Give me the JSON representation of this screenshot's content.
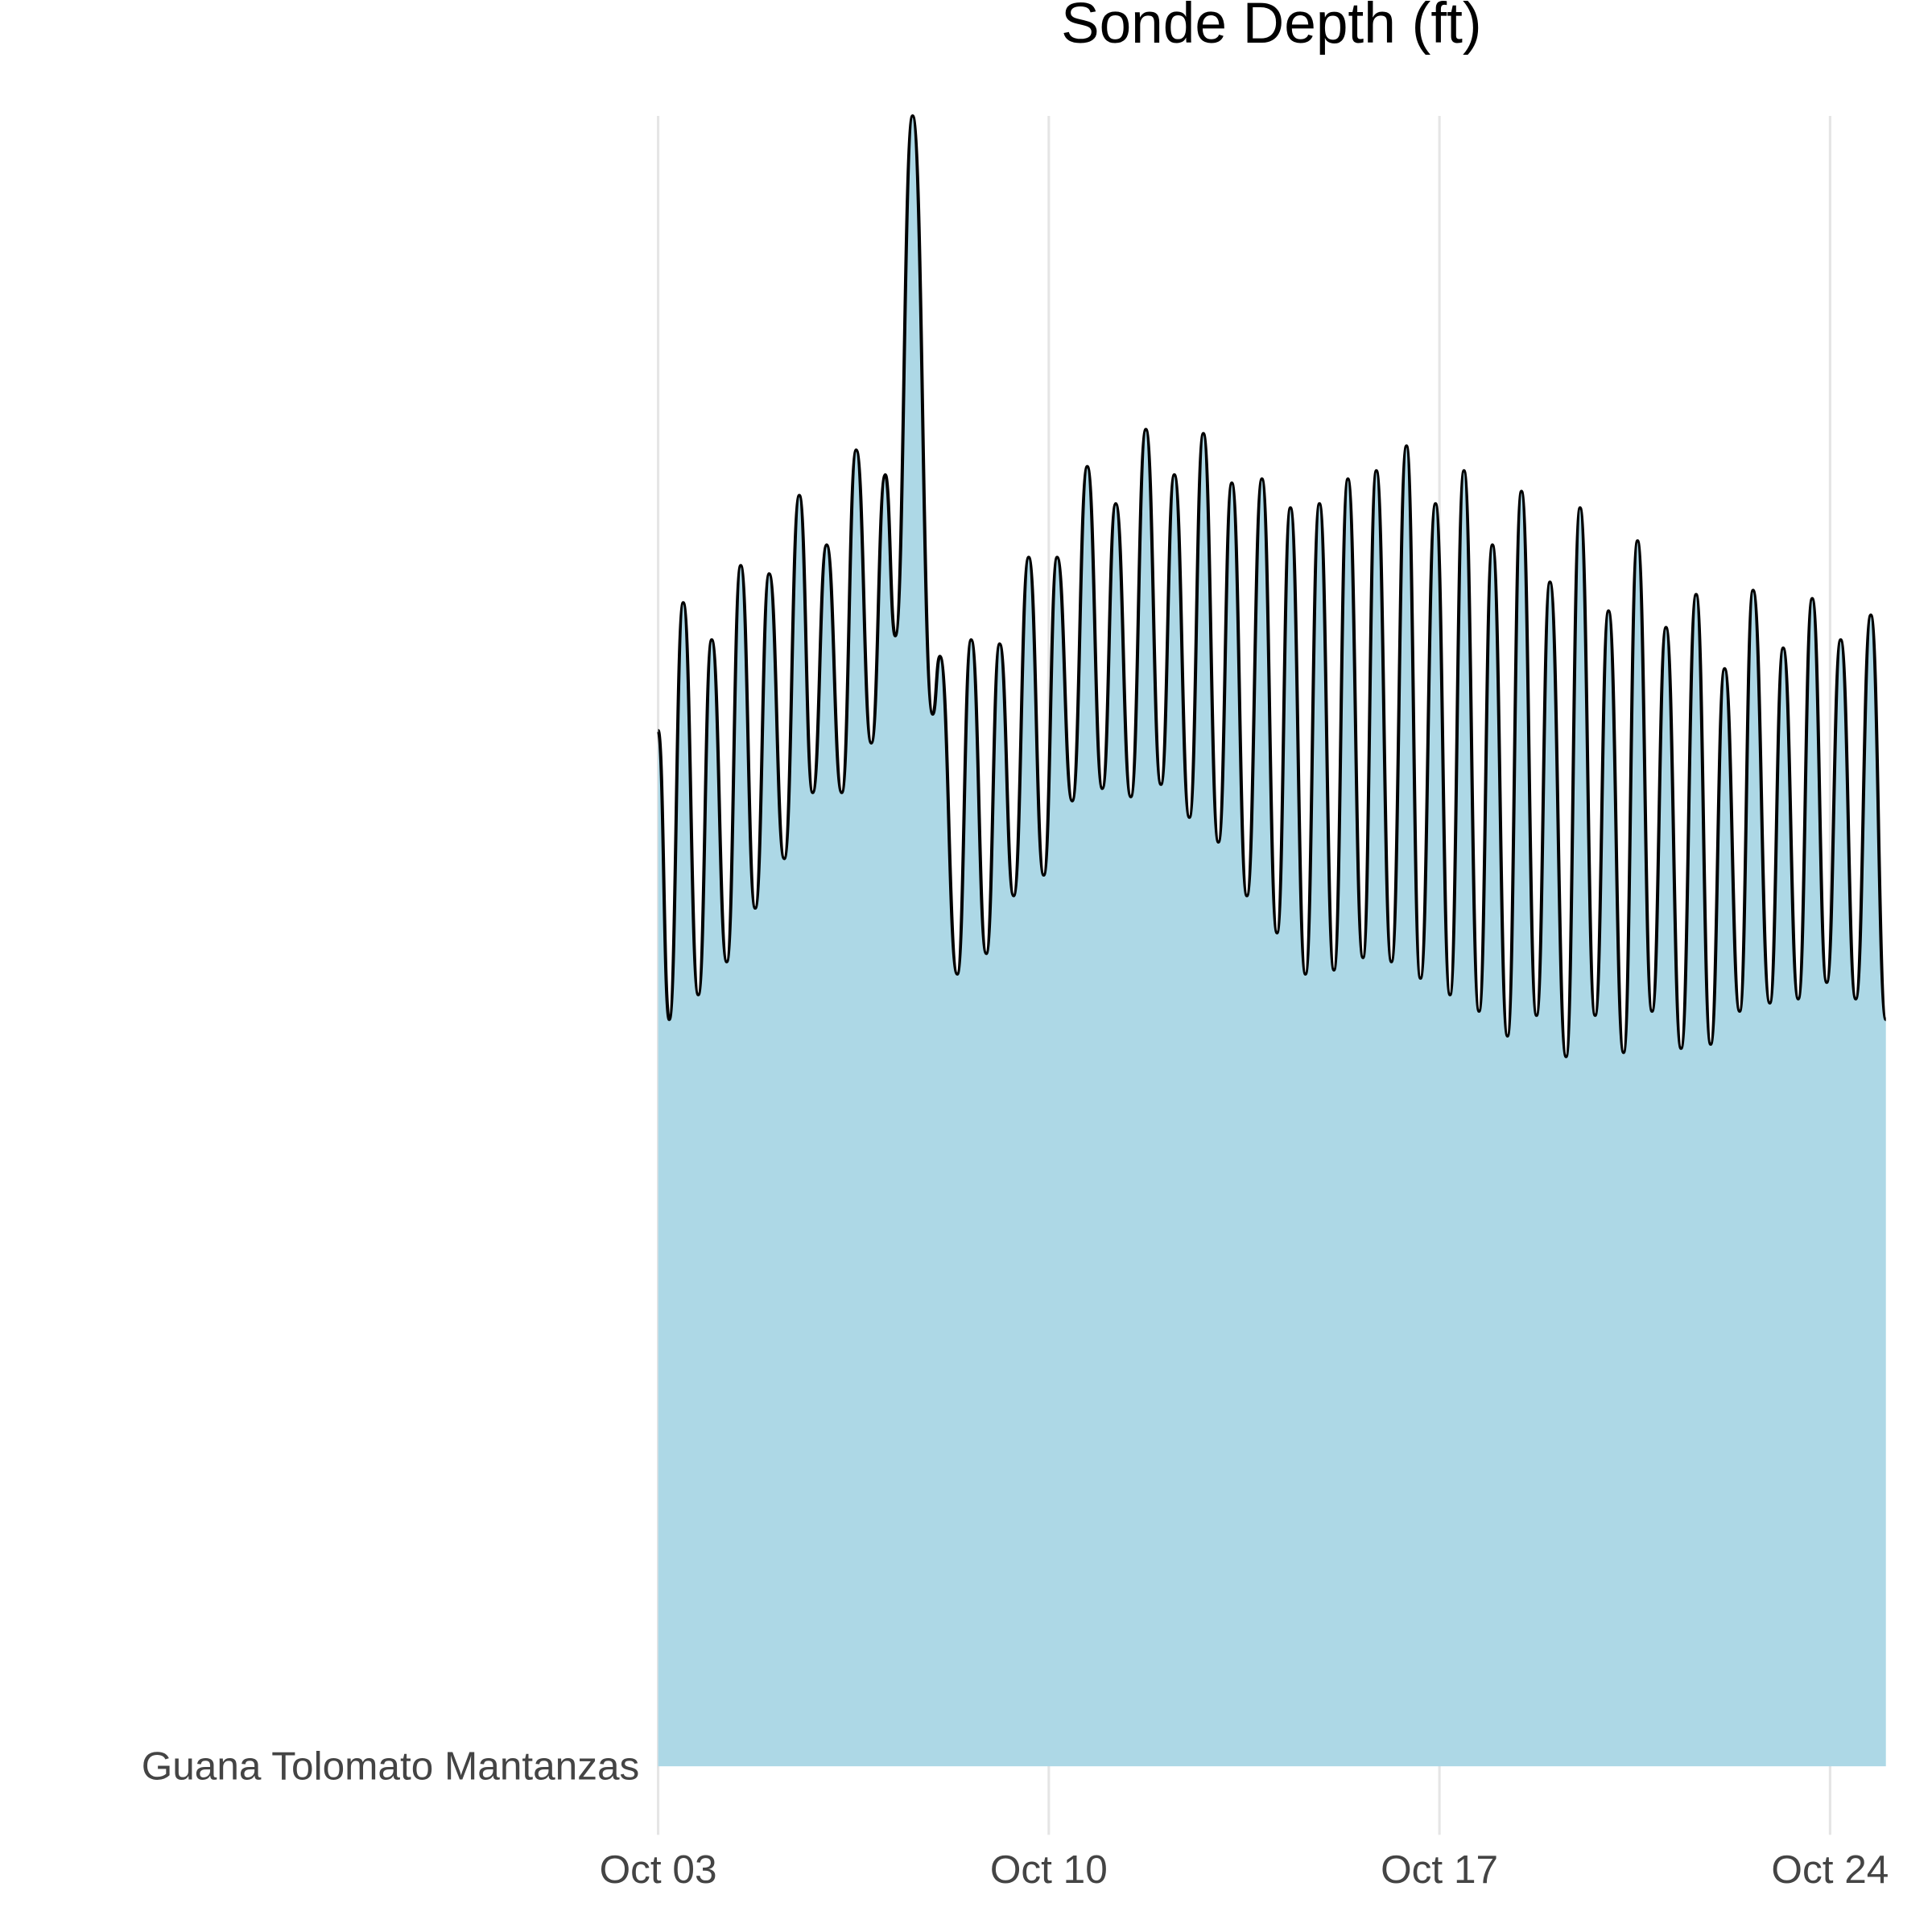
{
  "chart_data": {
    "type": "ridgeline",
    "title": "Sonde Depth (ft)",
    "categories": [
      "Guana Tolomato Mantanzas"
    ],
    "x": [
      3.0,
      3.2,
      3.45,
      3.72,
      3.96,
      4.23,
      4.48,
      4.74,
      4.99,
      5.26,
      5.53,
      5.77,
      6.02,
      6.29,
      6.55,
      6.82,
      7.07,
      7.25,
      7.56,
      7.92,
      8.05,
      8.36,
      8.61,
      8.88,
      9.12,
      9.37,
      9.64,
      9.91,
      10.15,
      10.42,
      10.69,
      10.96,
      11.2,
      11.47,
      11.74,
      12.01,
      12.25,
      12.52,
      12.77,
      13.04,
      13.28,
      13.55,
      13.82,
      14.09,
      14.33,
      14.6,
      14.85,
      15.11,
      15.36,
      15.63,
      15.87,
      16.14,
      16.41,
      16.66,
      16.93,
      17.19,
      17.44,
      17.71,
      17.95,
      18.22,
      18.47,
      18.74,
      18.98,
      19.27,
      19.52,
      19.79,
      20.03,
      20.3,
      20.55,
      20.81,
      21.06,
      21.33,
      21.6,
      21.86,
      22.11,
      22.38,
      22.62,
      22.92,
      23.16,
      23.43,
      23.68,
      23.94,
      24.19,
      24.46,
      24.73,
      25.0
    ],
    "values": [
      2.51,
      1.81,
      2.82,
      1.87,
      2.73,
      1.95,
      2.91,
      2.08,
      2.89,
      2.2,
      3.08,
      2.36,
      2.96,
      2.36,
      3.19,
      2.48,
      3.13,
      2.74,
      4.0,
      2.55,
      2.69,
      1.92,
      2.73,
      1.97,
      2.72,
      2.11,
      2.93,
      2.16,
      2.93,
      2.34,
      3.15,
      2.37,
      3.06,
      2.35,
      3.24,
      2.38,
      3.13,
      2.3,
      3.23,
      2.24,
      3.11,
      2.11,
      3.12,
      2.02,
      3.05,
      1.92,
      3.06,
      1.93,
      3.12,
      1.96,
      3.14,
      1.95,
      3.2,
      1.91,
      3.06,
      1.87,
      3.14,
      1.83,
      2.96,
      1.77,
      3.09,
      1.82,
      2.87,
      1.72,
      3.05,
      1.82,
      2.8,
      1.73,
      2.97,
      1.83,
      2.76,
      1.74,
      2.84,
      1.75,
      2.66,
      1.83,
      2.85,
      1.85,
      2.71,
      1.86,
      2.83,
      1.9,
      2.73,
      1.86,
      2.79,
      1.81
    ],
    "fill": "#add8e6",
    "line_color": "#000000",
    "xlim": [
      3,
      25
    ],
    "xticks": [
      {
        "value": 3,
        "label": "Oct 03"
      },
      {
        "value": 10,
        "label": "Oct 10"
      },
      {
        "value": 17,
        "label": "Oct 17"
      },
      {
        "value": 24,
        "label": "Oct 24"
      }
    ],
    "ylim": [
      0,
      4
    ],
    "grid": true
  }
}
